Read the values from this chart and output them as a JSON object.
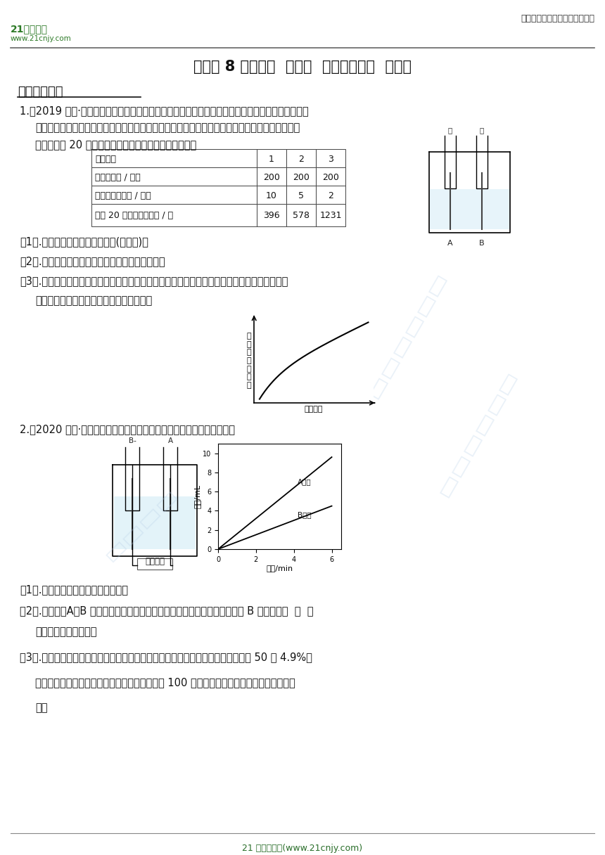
{
  "bg_color": "#ffffff",
  "header_right_text": "中小学教育资源及组卷应用平台",
  "title": "浙教版 8 年级上册  第一章  水和水的溶液  解答题",
  "section1": "一、水的组成",
  "q1_line1": "1.（2019 八上·长兴月考）电解水的实验中，往往加入少量硫酸溶液以增强水的导电性。小科同学分",
  "q1_line2": "别在等量的蒸馏水中加入不同体积的同种硫酸溶液，利用如图甲所示装置做了三次实验，测出电解",
  "q1_line3": "水时收集到 20 毫升氢气所需的时间，记录数据如下表：",
  "table_col0": [
    "实验次数",
    "蒸馏水体积 / 毫升",
    "加入硫酸的体积 / 毫升",
    "收集 20 毫升氢气的时间 / 秒"
  ],
  "table_col1": [
    "1",
    "200",
    "10",
    "396"
  ],
  "table_col2": [
    "2",
    "200",
    "5",
    "578"
  ],
  "table_col3": [
    "3",
    "200",
    "2",
    "1231"
  ],
  "q1_1": "（1）.甲试管收集到的气体是＿＿(填名称)；",
  "q1_2": "（2）.本实验是通过观测＿＿来判断电解水的速度；",
  "q1_3a": "（3）.小科同学发现：每次实验从开始到结束的过程中。产生气泡的速度随反应时间的变化如图所",
  "q1_3b": "示，请你结合上述实验数据说明理由＿＿。",
  "graph1_ylabel": "产\n生\n气\n泡\n的\n速\n度",
  "graph1_xlabel": "反应时间",
  "q2_line1": "2.（2020 八上·仙居期末）图甲是电解水的简易装置，试回答下列问题：",
  "q2_1": "（1）.实验证明了水是由＿＿组成的；",
  "q2_2a": "（2）.实验中，A、B 试管中气体的体积与时间的关系如图乙所示。由图乙可知 B 气体是＿＿  ，  直",
  "q2_2b": "流电源左侧是＿＿极；",
  "q2_3a": "（3）.为了加快电解水的速度，常在水中加入一定量的稀硫酸。若实验前在水中加入 50 克 4.9%的",
  "q2_3b": "稀硫酸，实验结束后测得剩余溶液的质量刚好为 100 克，则剩余溶液中溶质的质量分数为多",
  "q2_3c": "少？",
  "footer": "21 世纪教育网(www.21cnjy.com)",
  "logo_line1": "21世纪教育",
  "logo_line2": "www.21cnjy.com"
}
